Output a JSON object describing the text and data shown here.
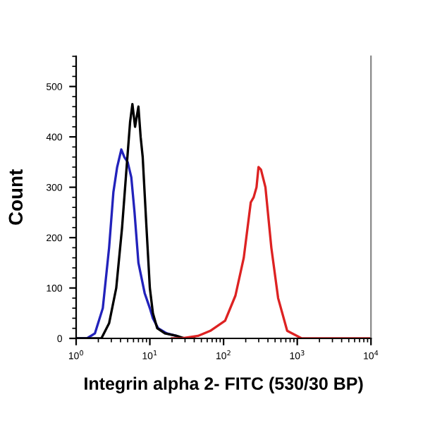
{
  "chart_data": {
    "type": "line",
    "xlabel": "Integrin alpha 2- FITC (530/30 BP)",
    "ylabel": "Count",
    "log": "x",
    "xlim": [
      1,
      10000
    ],
    "xticks": [
      {
        "value": 1,
        "label": "10$^{0}$"
      },
      {
        "value": 10,
        "label": "10$^{1}$"
      },
      {
        "value": 100,
        "label": "10$^{2}$"
      },
      {
        "value": 1000,
        "label": "10$^{3}$"
      },
      {
        "value": 10000,
        "label": "10$^{4}$"
      }
    ],
    "ylim": [
      0,
      560
    ],
    "yticks": [
      0,
      100,
      200,
      300,
      400,
      500
    ],
    "grid": false,
    "legend": false,
    "series": [
      {
        "color": "#2222bb",
        "x": [
          1,
          1.4,
          1.8,
          2.3,
          2.8,
          3.2,
          3.6,
          4.1,
          4.5,
          5,
          5.6,
          6.2,
          7,
          8.5,
          10,
          11,
          13,
          17,
          23
        ],
        "values": [
          0,
          0,
          10,
          60,
          180,
          290,
          340,
          375,
          360,
          350,
          320,
          250,
          150,
          90,
          60,
          40,
          20,
          10,
          5
        ]
      },
      {
        "color": "#000000",
        "x": [
          1,
          2.2,
          2.8,
          3.5,
          4.2,
          4.9,
          5.4,
          5.8,
          6.3,
          7,
          7.5,
          8,
          9,
          10,
          11,
          12.6,
          16,
          23,
          30,
          40
        ],
        "values": [
          0,
          0,
          30,
          100,
          220,
          350,
          430,
          465,
          420,
          460,
          400,
          360,
          220,
          100,
          50,
          20,
          10,
          5,
          0,
          0
        ]
      },
      {
        "color": "#dd2222",
        "x": [
          20,
          27,
          45,
          66,
          105,
          145,
          188,
          234,
          256,
          280,
          298,
          322,
          370,
          445,
          550,
          730,
          1150,
          10000
        ],
        "values": [
          0,
          0,
          5,
          15,
          35,
          85,
          160,
          270,
          280,
          300,
          340,
          335,
          300,
          180,
          80,
          15,
          0,
          0
        ]
      }
    ]
  }
}
